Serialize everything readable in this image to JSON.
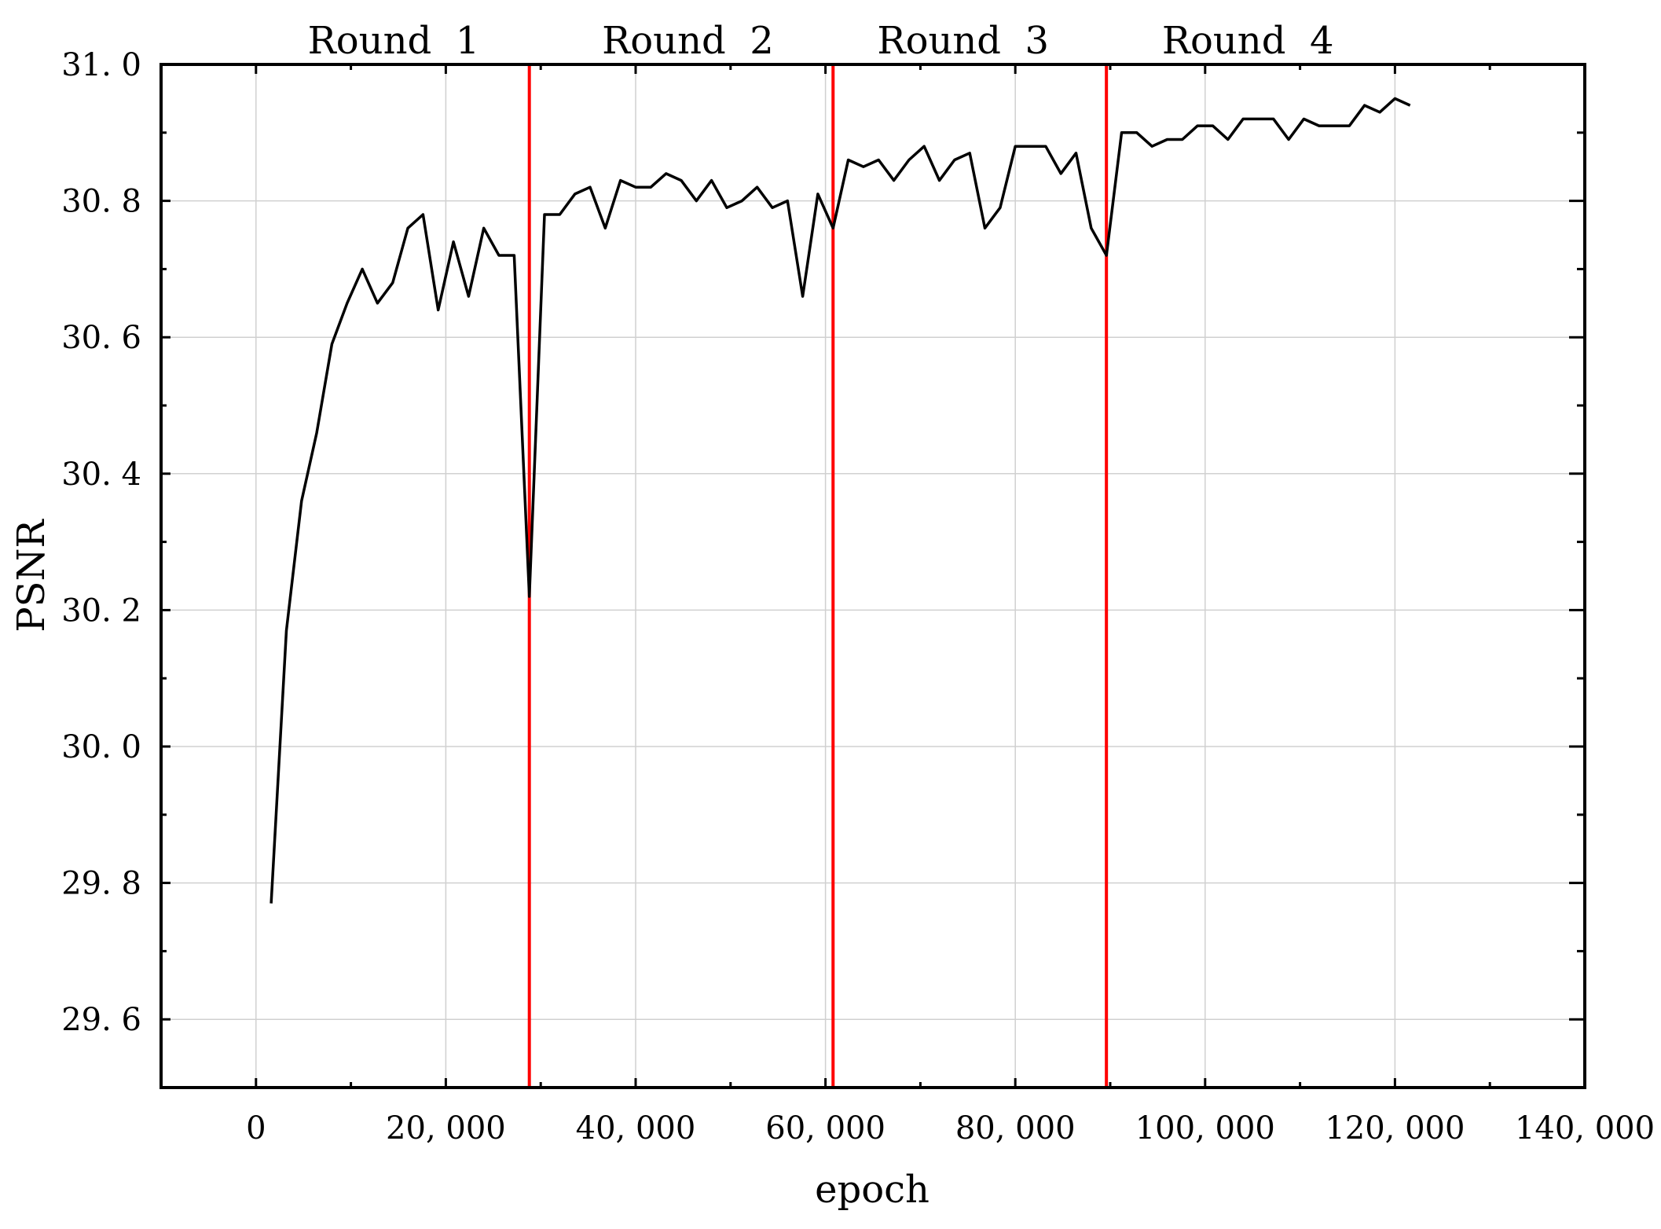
{
  "chart_data": {
    "type": "line",
    "title": "",
    "xlabel": "epoch",
    "ylabel": "PSNR",
    "xlim": [
      -10000,
      140000
    ],
    "ylim": [
      29.5,
      31.0
    ],
    "xticks": [
      0,
      20000,
      40000,
      60000,
      80000,
      100000,
      120000,
      140000
    ],
    "xtick_labels": [
      "0",
      "20, 000",
      "40, 000",
      "60, 000",
      "80, 000",
      "100, 000",
      "120, 000",
      "140, 000"
    ],
    "yticks": [
      29.6,
      29.8,
      30.0,
      30.2,
      30.4,
      30.6,
      30.8,
      31.0
    ],
    "ytick_labels": [
      "29. 6",
      "29. 8",
      "30. 0",
      "30. 2",
      "30. 4",
      "30. 6",
      "30. 8",
      "31. 0"
    ],
    "grid": true,
    "series": [
      {
        "color": "#000000",
        "x": [
          1600,
          3200,
          4800,
          6400,
          8000,
          9600,
          11200,
          12800,
          14400,
          16000,
          17600,
          19200,
          20800,
          22400,
          24000,
          25600,
          27200,
          28800,
          30400,
          32000,
          33600,
          35200,
          36800,
          38400,
          40000,
          41600,
          43200,
          44800,
          46400,
          48000,
          49600,
          51200,
          52800,
          54400,
          56000,
          57600,
          59200,
          60800,
          62400,
          64000,
          65600,
          67200,
          68800,
          70400,
          72000,
          73600,
          75200,
          76800,
          78400,
          80000,
          81600,
          83200,
          84800,
          86400,
          88000,
          89600,
          91200,
          92800,
          94400,
          96000,
          97600,
          99200,
          100800,
          102400,
          104000,
          105600,
          107200,
          108800,
          110400,
          112000,
          113600,
          115200,
          116800,
          118400,
          120000,
          121600
        ],
        "y": [
          29.77,
          30.17,
          30.36,
          30.46,
          30.59,
          30.65,
          30.7,
          30.65,
          30.68,
          30.76,
          30.78,
          30.64,
          30.74,
          30.66,
          30.76,
          30.72,
          30.72,
          30.22,
          30.78,
          30.78,
          30.81,
          30.82,
          30.76,
          30.83,
          30.82,
          30.82,
          30.84,
          30.83,
          30.8,
          30.83,
          30.79,
          30.8,
          30.82,
          30.79,
          30.8,
          30.66,
          30.81,
          30.76,
          30.86,
          30.85,
          30.86,
          30.83,
          30.86,
          30.88,
          30.83,
          30.86,
          30.87,
          30.76,
          30.79,
          30.88,
          30.88,
          30.88,
          30.84,
          30.87,
          30.76,
          30.72,
          30.9,
          30.9,
          30.88,
          30.89,
          30.89,
          30.91,
          30.91,
          30.89,
          30.92,
          30.92,
          30.92,
          30.89,
          30.92,
          30.91,
          30.91,
          30.91,
          30.94,
          30.93,
          30.95,
          30.94
        ]
      }
    ],
    "dividers": [
      {
        "x": 28800,
        "color": "#ff0000"
      },
      {
        "x": 60800,
        "color": "#ff0000"
      },
      {
        "x": 89600,
        "color": "#ff0000"
      }
    ],
    "annotations": [
      {
        "text": "Round  1",
        "x": 14500
      },
      {
        "text": "Round  2",
        "x": 45500
      },
      {
        "text": "Round  3",
        "x": 74500
      },
      {
        "text": "Round  4",
        "x": 104500
      }
    ]
  }
}
